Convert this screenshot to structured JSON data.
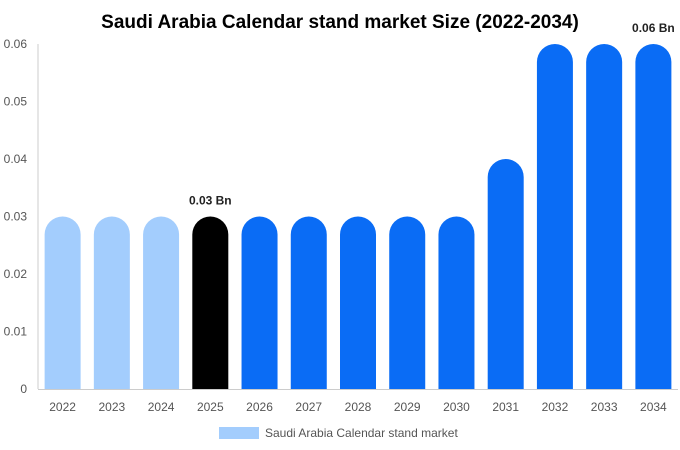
{
  "chart_data": {
    "type": "bar",
    "title": "Saudi Arabia Calendar stand market  Size (2022-2034)",
    "categories": [
      "2022",
      "2023",
      "2024",
      "2025",
      "2026",
      "2027",
      "2028",
      "2029",
      "2030",
      "2031",
      "2032",
      "2033",
      "2034"
    ],
    "series": [
      {
        "name": "Saudi Arabia Calendar stand market",
        "values": [
          0.03,
          0.03,
          0.03,
          0.03,
          0.03,
          0.03,
          0.03,
          0.03,
          0.03,
          0.04,
          0.06,
          0.06,
          0.06
        ]
      }
    ],
    "yticks": [
      "0",
      "0.01",
      "0.02",
      "0.03",
      "0.04",
      "0.05",
      "0.06"
    ],
    "ylim": [
      0,
      0.06
    ],
    "data_labels": [
      {
        "category": "2025",
        "text": "0.03 Bn"
      },
      {
        "category": "2034",
        "text": "0.06 Bn"
      }
    ],
    "colors": {
      "historic": "#a3cdfd",
      "current": "#000000",
      "forecast": "#0a6cf5"
    },
    "color_groups": [
      "historic",
      "historic",
      "historic",
      "current",
      "forecast",
      "forecast",
      "forecast",
      "forecast",
      "forecast",
      "forecast",
      "forecast",
      "forecast",
      "forecast"
    ],
    "legend": {
      "position": "bottom",
      "swatch_color": "#a3cdfd"
    },
    "grid": false
  }
}
